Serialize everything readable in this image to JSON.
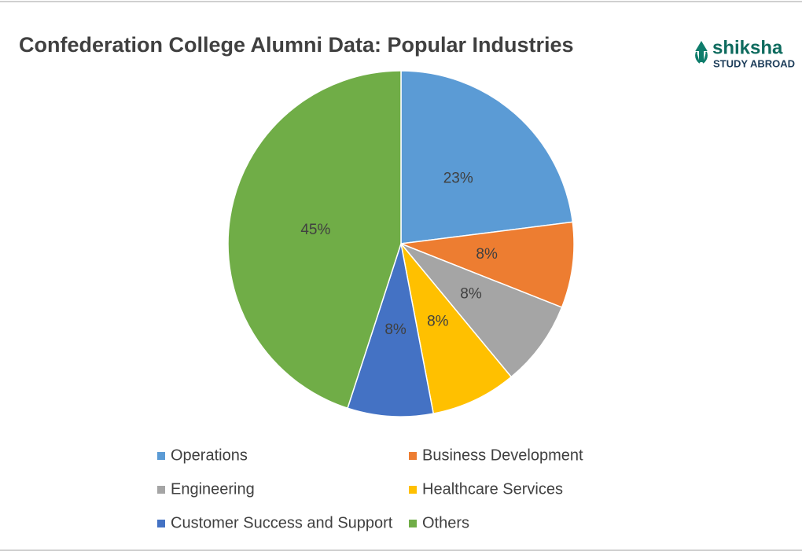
{
  "chart_data": {
    "type": "pie",
    "title": "Confederation College Alumni Data: Popular Industries",
    "categories": [
      "Operations",
      "Business Development",
      "Engineering",
      "Healthcare Services",
      "Customer Success and Support",
      "Others"
    ],
    "values": [
      23,
      8,
      8,
      8,
      8,
      45
    ],
    "value_labels": [
      "23%",
      "8%",
      "8%",
      "8%",
      "8%",
      "45%"
    ],
    "colors": [
      "#5b9bd5",
      "#ed7d31",
      "#a5a5a5",
      "#ffc000",
      "#4472c4",
      "#70ad47"
    ],
    "legend": "bottom"
  },
  "logo": {
    "name": "shiksha",
    "tagline": "STUDY ABROAD"
  }
}
